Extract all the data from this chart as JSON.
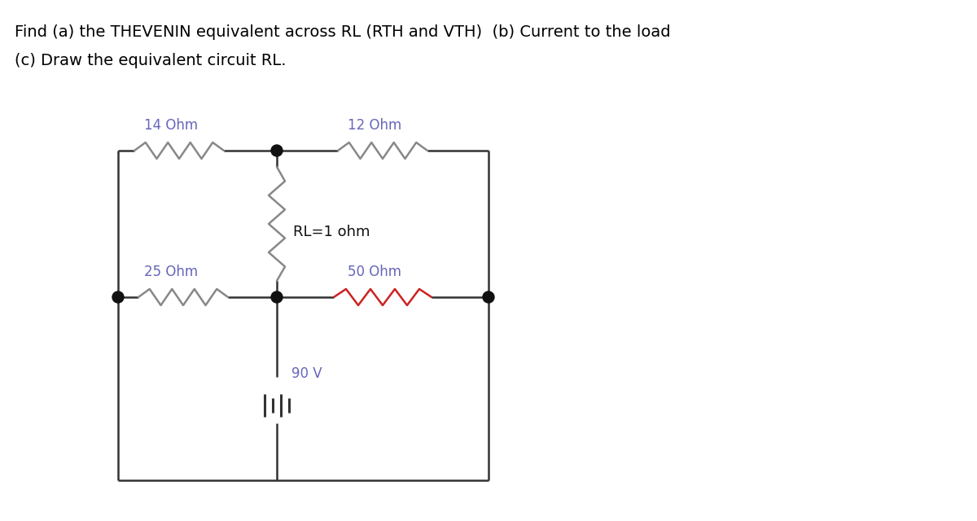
{
  "title_line1": "Find (a) the THEVENIN equivalent across RL (RTH and VTH)  (b) Current to the load",
  "title_line2": "(c) Draw the equivalent circuit RL.",
  "title_fontsize": 14,
  "title_color": "#000000",
  "label_14": "14 Ohm",
  "label_12": "12 Ohm",
  "label_25": "25 Ohm",
  "label_50": "50 Ohm",
  "label_RL": "RL=1 ohm",
  "label_90": "90 V",
  "resistor_color_default": "#888888",
  "resistor_color_50": "#cc2222",
  "label_color_blue": "#6666bb",
  "label_color_black": "#111111",
  "wire_color": "#333333",
  "dot_color": "#111111",
  "background_color": "#ffffff"
}
